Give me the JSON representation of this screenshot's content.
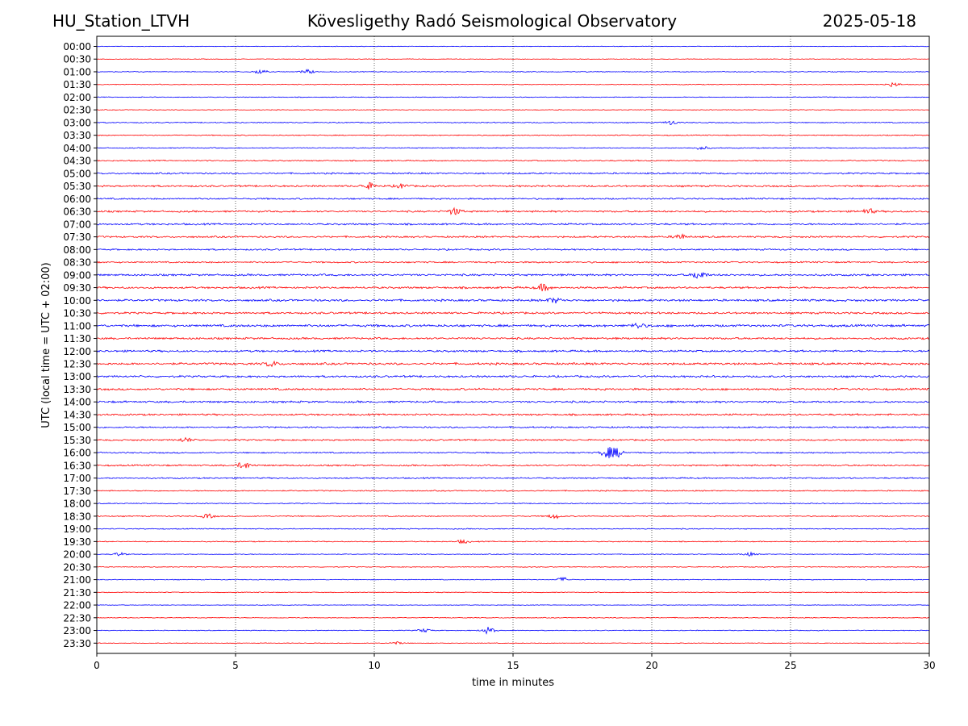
{
  "header": {
    "station": "HU_Station_LTVH",
    "observatory": "Kövesligethy Radó Seismological Observatory",
    "date": "2025-05-18"
  },
  "chart_data": {
    "type": "line",
    "title": "Kövesligethy Radó Seismological Observatory",
    "xlabel": "time in minutes",
    "ylabel": "UTC (local time = UTC + 02:00)",
    "xlim": [
      0,
      30
    ],
    "x_ticks": [
      0,
      5,
      10,
      15,
      20,
      25,
      30
    ],
    "grid": "vertical dotted lines every 5 minutes",
    "trace_colors": [
      "#0000ff",
      "#ff0000"
    ],
    "row_labels": [
      "00:00",
      "00:30",
      "01:00",
      "01:30",
      "02:00",
      "02:30",
      "03:00",
      "03:30",
      "04:00",
      "04:30",
      "05:00",
      "05:30",
      "06:00",
      "06:30",
      "07:00",
      "07:30",
      "08:00",
      "08:30",
      "09:00",
      "09:30",
      "10:00",
      "10:30",
      "11:00",
      "11:30",
      "12:00",
      "12:30",
      "13:00",
      "13:30",
      "14:00",
      "14:30",
      "15:00",
      "15:30",
      "16:00",
      "16:30",
      "17:00",
      "17:30",
      "18:00",
      "18:30",
      "19:00",
      "19:30",
      "20:00",
      "20:30",
      "21:00",
      "21:30",
      "22:00",
      "22:30",
      "23:00",
      "23:30"
    ],
    "noise_level": [
      0.3,
      0.3,
      0.4,
      0.4,
      0.4,
      0.4,
      0.5,
      0.5,
      0.5,
      0.6,
      0.8,
      0.9,
      0.8,
      0.9,
      0.9,
      0.9,
      0.8,
      0.8,
      1.0,
      1.0,
      1.1,
      1.0,
      1.2,
      1.0,
      1.0,
      1.1,
      1.0,
      1.0,
      1.0,
      0.9,
      0.8,
      0.8,
      0.7,
      0.8,
      0.7,
      0.6,
      0.5,
      0.6,
      0.5,
      0.5,
      0.4,
      0.4,
      0.4,
      0.4,
      0.3,
      0.4,
      0.4,
      0.3
    ],
    "events": [
      {
        "row": 2,
        "t": 5.9,
        "amp": 2.5
      },
      {
        "row": 2,
        "t": 7.6,
        "amp": 2.5
      },
      {
        "row": 3,
        "t": 28.7,
        "amp": 2.5
      },
      {
        "row": 6,
        "t": 20.7,
        "amp": 2.5
      },
      {
        "row": 8,
        "t": 21.8,
        "amp": 2.0
      },
      {
        "row": 11,
        "t": 9.8,
        "amp": 3.5
      },
      {
        "row": 11,
        "t": 11.0,
        "amp": 2.5
      },
      {
        "row": 13,
        "t": 12.9,
        "amp": 4.0
      },
      {
        "row": 13,
        "t": 27.8,
        "amp": 3.0
      },
      {
        "row": 15,
        "t": 21.0,
        "amp": 3.0
      },
      {
        "row": 18,
        "t": 21.7,
        "amp": 5.0
      },
      {
        "row": 19,
        "t": 16.1,
        "amp": 4.0
      },
      {
        "row": 20,
        "t": 16.5,
        "amp": 3.0
      },
      {
        "row": 22,
        "t": 19.5,
        "amp": 3.0
      },
      {
        "row": 25,
        "t": 6.3,
        "amp": 3.0
      },
      {
        "row": 31,
        "t": 3.2,
        "amp": 2.5
      },
      {
        "row": 32,
        "t": 18.4,
        "amp": 6.0
      },
      {
        "row": 32,
        "t": 18.75,
        "amp": 5.0
      },
      {
        "row": 33,
        "t": 5.3,
        "amp": 4.0
      },
      {
        "row": 37,
        "t": 4.0,
        "amp": 2.5
      },
      {
        "row": 37,
        "t": 16.5,
        "amp": 2.5
      },
      {
        "row": 39,
        "t": 13.2,
        "amp": 2.0
      },
      {
        "row": 40,
        "t": 0.8,
        "amp": 2.0
      },
      {
        "row": 40,
        "t": 23.5,
        "amp": 2.0
      },
      {
        "row": 42,
        "t": 16.8,
        "amp": 2.5
      },
      {
        "row": 46,
        "t": 11.8,
        "amp": 2.0
      },
      {
        "row": 46,
        "t": 14.1,
        "amp": 4.0
      },
      {
        "row": 47,
        "t": 10.8,
        "amp": 1.5
      }
    ]
  }
}
